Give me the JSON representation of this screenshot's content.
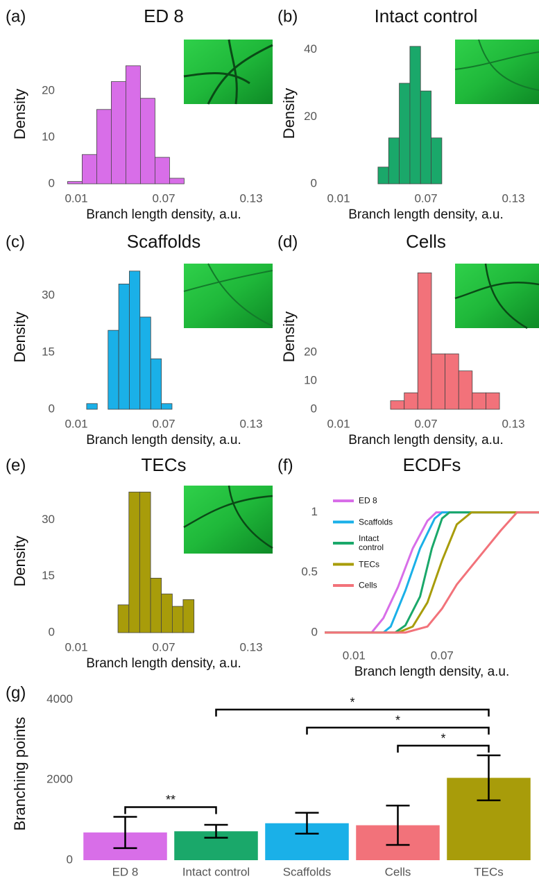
{
  "chart_data": [
    {
      "type": "histogram",
      "panel_label": "(a)",
      "title": "ED 8",
      "x_label": "Branch length density, a.u.",
      "y_label": "Density",
      "color": "#d86ee8",
      "bins": [
        0.004,
        0.014,
        0.024,
        0.034,
        0.044,
        0.054,
        0.064,
        0.074,
        0.084
      ],
      "values": [
        0.5,
        6.3,
        16,
        22,
        25.4,
        18.4,
        5.7,
        1.2
      ],
      "xlim": [
        0,
        0.14
      ],
      "xticks": [
        0.01,
        0.07,
        0.13
      ],
      "ylim": [
        0,
        30
      ],
      "yticks": [
        0,
        10,
        20
      ]
    },
    {
      "type": "histogram",
      "panel_label": "(b)",
      "title": "Intact control",
      "x_label": "Branch length density, a.u.",
      "y_label": "Density",
      "color": "#1aa86a",
      "bins": [
        0.0371,
        0.0444,
        0.0517,
        0.059,
        0.0663,
        0.0736,
        0.0809
      ],
      "values": [
        5,
        13.7,
        30,
        41,
        27.7,
        13.7
      ],
      "xlim": [
        0,
        0.14
      ],
      "xticks": [
        0.01,
        0.07,
        0.13
      ],
      "ylim": [
        0,
        42
      ],
      "yticks": [
        0,
        20,
        40
      ]
    },
    {
      "type": "histogram",
      "panel_label": "(c)",
      "title": "Scaffolds",
      "x_label": "Branch length density, a.u.",
      "y_label": "Density",
      "color": "#1ab0e8",
      "bins": [
        0.0171,
        0.0244,
        0.0318,
        0.0391,
        0.0464,
        0.0537,
        0.0611,
        0.0684,
        0.0757
      ],
      "values": [
        1.5,
        0,
        20.8,
        33,
        36.4,
        24.3,
        13.3,
        1.5
      ],
      "xlim": [
        0,
        0.14
      ],
      "xticks": [
        0.01,
        0.07,
        0.13
      ],
      "ylim": [
        0,
        38
      ],
      "yticks": [
        0,
        15,
        30
      ]
    },
    {
      "type": "histogram",
      "panel_label": "(d)",
      "title": "Cells",
      "x_label": "Branch length density, a.u.",
      "y_label": "Density",
      "color": "#f2727a",
      "bins": [
        0.0457,
        0.0551,
        0.0644,
        0.0738,
        0.0831,
        0.0925,
        0.1018,
        0.1112,
        0.1205
      ],
      "values": [
        3,
        5.8,
        48,
        19.5,
        19.5,
        13.5,
        5.8,
        5.8
      ],
      "xlim": [
        0,
        0.14
      ],
      "xticks": [
        0.01,
        0.07,
        0.13
      ],
      "ylim": [
        0,
        51
      ],
      "yticks": [
        0,
        10,
        20
      ]
    },
    {
      "type": "histogram",
      "panel_label": "(e)",
      "title": "TECs",
      "x_label": "Branch length density, a.u.",
      "y_label": "Density",
      "color": "#a89c0a",
      "bins": [
        0.0386,
        0.0461,
        0.0535,
        0.061,
        0.0684,
        0.0759,
        0.0833,
        0.0908
      ],
      "values": [
        7.4,
        37.4,
        37.4,
        14.5,
        10.3,
        7,
        8.8
      ],
      "xlim": [
        0,
        0.14
      ],
      "xticks": [
        0.01,
        0.07,
        0.13
      ],
      "ylim": [
        0,
        38
      ],
      "yticks": [
        0,
        15,
        30
      ]
    },
    {
      "type": "line",
      "panel_label": "(f)",
      "title": "ECDFs",
      "x_label": "Branch length density, a.u.",
      "legend": "upper left",
      "xlim": [
        -0.01,
        0.136
      ],
      "xticks": [
        0.01,
        0.07
      ],
      "ylim": [
        -0.07,
        1.2
      ],
      "yticks": [
        0,
        0.5,
        1
      ],
      "series": [
        {
          "name": "ED 8",
          "color": "#d86ee8",
          "x": [
            -0.01,
            0.022,
            0.03,
            0.04,
            0.05,
            0.06,
            0.066,
            0.136
          ],
          "values": [
            0,
            0,
            0.12,
            0.38,
            0.7,
            0.93,
            1,
            1
          ]
        },
        {
          "name": "Scaffolds",
          "color": "#1ab0e8",
          "x": [
            -0.01,
            0.03,
            0.035,
            0.045,
            0.055,
            0.065,
            0.07,
            0.136
          ],
          "values": [
            0,
            0,
            0.05,
            0.35,
            0.7,
            0.95,
            1,
            1
          ]
        },
        {
          "name": "Intact control",
          "color": "#1aa86a",
          "x": [
            -0.01,
            0.038,
            0.045,
            0.055,
            0.063,
            0.07,
            0.075,
            0.136
          ],
          "values": [
            0,
            0,
            0.06,
            0.3,
            0.7,
            0.95,
            1,
            1
          ]
        },
        {
          "name": "TECs",
          "color": "#a89c0a",
          "x": [
            -0.01,
            0.04,
            0.05,
            0.06,
            0.07,
            0.08,
            0.09,
            0.136
          ],
          "values": [
            0,
            0,
            0.05,
            0.25,
            0.6,
            0.9,
            1,
            1
          ]
        },
        {
          "name": "Cells",
          "color": "#f2727a",
          "x": [
            -0.01,
            0.045,
            0.06,
            0.07,
            0.08,
            0.09,
            0.1,
            0.11,
            0.121,
            0.136
          ],
          "values": [
            0,
            0,
            0.05,
            0.2,
            0.4,
            0.55,
            0.7,
            0.85,
            1,
            1
          ]
        }
      ]
    },
    {
      "type": "errorbar",
      "panel_label": "(g)",
      "y_label": "Branching points",
      "categories": [
        "ED 8",
        "Intact control",
        "Scaffolds",
        "Cells",
        "TECs"
      ],
      "values": [
        690,
        720,
        920,
        870,
        2050
      ],
      "errors": [
        390,
        160,
        260,
        490,
        560
      ],
      "colors": [
        "#d86ee8",
        "#1aa86a",
        "#1ab0e8",
        "#f2727a",
        "#a89c0a"
      ],
      "ylim": [
        0,
        4300
      ],
      "yticks": [
        0,
        2000,
        4000
      ],
      "significance": [
        {
          "text": "**",
          "from": "ED 8",
          "to": "Intact control"
        },
        {
          "text": "*",
          "from": "Cells",
          "to": "TECs"
        },
        {
          "text": "*",
          "from": "Scaffolds",
          "to": "TECs"
        },
        {
          "text": "*",
          "from": "Intact control",
          "to": "TECs"
        }
      ]
    }
  ]
}
